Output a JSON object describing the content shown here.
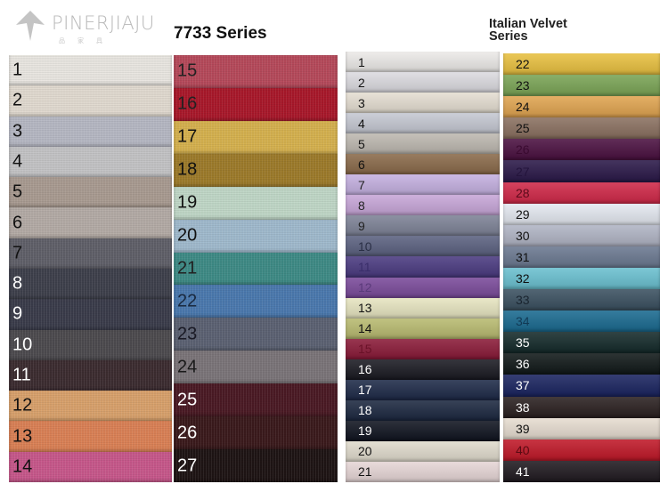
{
  "logo": {
    "text": "PINERJIAJU"
  },
  "series_7733": {
    "title": "7733 Series",
    "columns": [
      [
        {
          "label": "1",
          "color": "#e8e5e0",
          "text": "#111"
        },
        {
          "label": "2",
          "color": "#e0d9cf",
          "text": "#111"
        },
        {
          "label": "3",
          "color": "#b5b7c2",
          "text": "#111"
        },
        {
          "label": "4",
          "color": "#c2c2c4",
          "text": "#111"
        },
        {
          "label": "5",
          "color": "#a89a90",
          "text": "#111"
        },
        {
          "label": "6",
          "color": "#b3aaa5",
          "text": "#111"
        },
        {
          "label": "7",
          "color": "#5f5f68",
          "text": "#111"
        },
        {
          "label": "8",
          "color": "#3e404b",
          "text": "#fff"
        },
        {
          "label": "9",
          "color": "#3a3c4a",
          "text": "#fff"
        },
        {
          "label": "10",
          "color": "#4c4a4e",
          "text": "#fff"
        },
        {
          "label": "11",
          "color": "#3c2c30",
          "text": "#fff"
        },
        {
          "label": "12",
          "color": "#d7a06b",
          "text": "#111"
        },
        {
          "label": "13",
          "color": "#d98055",
          "text": "#111"
        },
        {
          "label": "14",
          "color": "#c6578a",
          "text": "#111"
        }
      ],
      [
        {
          "label": "15",
          "color": "#b5495a",
          "text": "#222"
        },
        {
          "label": "16",
          "color": "#a8182a",
          "text": "#222"
        },
        {
          "label": "17",
          "color": "#d4b04e",
          "text": "#111"
        },
        {
          "label": "18",
          "color": "#9c7a2a",
          "text": "#111"
        },
        {
          "label": "19",
          "color": "#bfd6c6",
          "text": "#111"
        },
        {
          "label": "20",
          "color": "#9fb9cc",
          "text": "#111"
        },
        {
          "label": "21",
          "color": "#3e8a85",
          "text": "#222"
        },
        {
          "label": "22",
          "color": "#4a78ad",
          "text": "#1a2a40"
        },
        {
          "label": "23",
          "color": "#5b6172",
          "text": "#1a1a25"
        },
        {
          "label": "24",
          "color": "#7a7478",
          "text": "#1a1a1a"
        },
        {
          "label": "25",
          "color": "#4a1a24",
          "text": "#fff"
        },
        {
          "label": "26",
          "color": "#3a1a1c",
          "text": "#fff"
        },
        {
          "label": "27",
          "color": "#1e1414",
          "text": "#fff"
        }
      ]
    ]
  },
  "italian_velvet": {
    "title": "Italian Velvet\nSeries",
    "columns": [
      [
        {
          "label": "1",
          "color": "#eceae8",
          "text": "#111"
        },
        {
          "label": "2",
          "color": "#dcdbe0",
          "text": "#111"
        },
        {
          "label": "3",
          "color": "#e5ded2",
          "text": "#111"
        },
        {
          "label": "4",
          "color": "#c5c8d2",
          "text": "#111"
        },
        {
          "label": "5",
          "color": "#bdb8b0",
          "text": "#111"
        },
        {
          "label": "6",
          "color": "#8a6a4a",
          "text": "#111"
        },
        {
          "label": "7",
          "color": "#c4b0e0",
          "text": "#222"
        },
        {
          "label": "8",
          "color": "#c7a6d8",
          "text": "#222"
        },
        {
          "label": "9",
          "color": "#7d8296",
          "text": "#222"
        },
        {
          "label": "10",
          "color": "#5b6180",
          "text": "#2a2f45"
        },
        {
          "label": "11",
          "color": "#4a3a80",
          "text": "#3a2e6a"
        },
        {
          "label": "12",
          "color": "#7a4a9a",
          "text": "#5a3a7a"
        },
        {
          "label": "13",
          "color": "#e6e4c0",
          "text": "#111"
        },
        {
          "label": "14",
          "color": "#b8ba70",
          "text": "#111"
        },
        {
          "label": "15",
          "color": "#8a1a38",
          "text": "#6a1228"
        },
        {
          "label": "16",
          "color": "#1a1a22",
          "text": "#fff"
        },
        {
          "label": "17",
          "color": "#1e2a48",
          "text": "#fff"
        },
        {
          "label": "18",
          "color": "#1c2840",
          "text": "#fff"
        },
        {
          "label": "19",
          "color": "#101420",
          "text": "#fff"
        },
        {
          "label": "20",
          "color": "#e0dbcd",
          "text": "#111"
        },
        {
          "label": "21",
          "color": "#e6d6d6",
          "text": "#111"
        }
      ],
      [
        {
          "label": "22",
          "color": "#e8c040",
          "text": "#111"
        },
        {
          "label": "23",
          "color": "#7aa455",
          "text": "#111"
        },
        {
          "label": "24",
          "color": "#e0a450",
          "text": "#111"
        },
        {
          "label": "25",
          "color": "#8a7060",
          "text": "#111"
        },
        {
          "label": "26",
          "color": "#4a1040",
          "text": "#3a0a30"
        },
        {
          "label": "27",
          "color": "#2a1848",
          "text": "#24143c"
        },
        {
          "label": "28",
          "color": "#d02848",
          "text": "#5a0a1a"
        },
        {
          "label": "29",
          "color": "#e4e8f0",
          "text": "#111"
        },
        {
          "label": "30",
          "color": "#b0b4c4",
          "text": "#111"
        },
        {
          "label": "31",
          "color": "#6a7890",
          "text": "#111"
        },
        {
          "label": "32",
          "color": "#6ac0d0",
          "text": "#111"
        },
        {
          "label": "33",
          "color": "#3a5060",
          "text": "#1a2530"
        },
        {
          "label": "34",
          "color": "#1a6a90",
          "text": "#123a55"
        },
        {
          "label": "35",
          "color": "#142a2a",
          "text": "#fff"
        },
        {
          "label": "36",
          "color": "#101818",
          "text": "#fff"
        },
        {
          "label": "37",
          "color": "#1a2460",
          "text": "#fff"
        },
        {
          "label": "38",
          "color": "#2a2020",
          "text": "#fff"
        },
        {
          "label": "39",
          "color": "#e6dcd0",
          "text": "#111"
        },
        {
          "label": "40",
          "color": "#c01828",
          "text": "#5a0a12"
        },
        {
          "label": "41",
          "color": "#201a20",
          "text": "#fff"
        }
      ]
    ]
  }
}
